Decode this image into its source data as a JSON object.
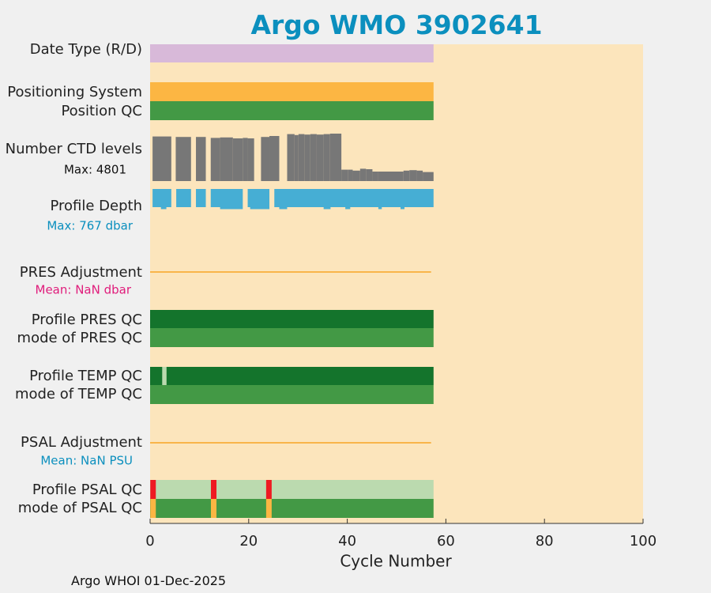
{
  "title": "Argo WMO 3902641",
  "footer": "Argo WHOI 01-Dec-2025",
  "colors": {
    "background": "#fce5bc",
    "date_type": "#d8b9d9",
    "positioning": "#fcb643",
    "qc_good": "#439945",
    "qc_dark": "#14742c",
    "qc_light": "#bbdaaf",
    "qc_bad": "#ee1a22",
    "ctd": "#777777",
    "depth": "#46aed4",
    "adjustment_line": "#f9b54a",
    "pres_mean_text": "#e01c7b",
    "psal_mean_text": "#0b8fbe"
  },
  "chart_data": {
    "type": "bar",
    "title": "Argo WMO 3902641",
    "xlabel": "Cycle Number",
    "xlim": [
      0,
      100
    ],
    "xticks": [
      0,
      20,
      40,
      60,
      80,
      100
    ],
    "max_cycle": 57.5,
    "rows": [
      {
        "label": "Date Type (R/D)",
        "kind": "band"
      },
      {
        "label": "Positioning System",
        "kind": "band"
      },
      {
        "label": "Position QC",
        "kind": "band"
      },
      {
        "label": "Number CTD levels",
        "note": "Max: 4801",
        "kind": "bars"
      },
      {
        "label": "Profile Depth",
        "note": "Max:  767 dbar",
        "kind": "depth"
      },
      {
        "label": "PRES Adjustment",
        "note": "Mean:  NaN dbar",
        "kind": "line"
      },
      {
        "label": "Profile PRES QC",
        "kind": "band"
      },
      {
        "label": "mode of PRES QC",
        "kind": "band"
      },
      {
        "label": "Profile TEMP QC",
        "kind": "band"
      },
      {
        "label": "mode of TEMP QC",
        "kind": "band"
      },
      {
        "label": "PSAL Adjustment",
        "note": "Mean:  NaN PSU",
        "kind": "line"
      },
      {
        "label": "Profile PSAL QC",
        "kind": "band"
      },
      {
        "label": "mode of PSAL QC",
        "kind": "band"
      }
    ],
    "ctd_levels_max": 4801,
    "ctd_levels": [
      [
        0.5,
        4.3,
        4700
      ],
      [
        5.2,
        8.3,
        4650
      ],
      [
        9.3,
        11.3,
        4650
      ],
      [
        12.3,
        14.2,
        4550
      ],
      [
        14.2,
        16.8,
        4600
      ],
      [
        16.8,
        18.8,
        4500
      ],
      [
        18.8,
        19.8,
        4550
      ],
      [
        19.8,
        21.1,
        4500
      ],
      [
        22.5,
        24.2,
        4650
      ],
      [
        24.2,
        26.2,
        4750
      ],
      [
        27.8,
        29.3,
        4950
      ],
      [
        29.3,
        30.1,
        4850
      ],
      [
        30.1,
        31.3,
        4950
      ],
      [
        31.3,
        32.5,
        4900
      ],
      [
        32.5,
        33.8,
        4950
      ],
      [
        33.8,
        35.2,
        4900
      ],
      [
        35.2,
        36.5,
        4950
      ],
      [
        36.5,
        38.8,
        5000
      ],
      [
        38.8,
        40.1,
        1200
      ],
      [
        40.1,
        41.1,
        1200
      ],
      [
        41.1,
        42.6,
        1100
      ],
      [
        42.6,
        43.8,
        1300
      ],
      [
        43.8,
        45.1,
        1250
      ],
      [
        45.1,
        46.3,
        1000
      ],
      [
        46.3,
        51.4,
        1000
      ],
      [
        51.4,
        52.6,
        1100
      ],
      [
        52.6,
        54.1,
        1150
      ],
      [
        54.1,
        55.3,
        1100
      ],
      [
        55.3,
        57.5,
        950
      ]
    ],
    "depth_segments": [
      [
        0.5,
        4.3
      ],
      [
        5.3,
        8.3
      ],
      [
        9.3,
        11.3
      ],
      [
        12.3,
        18.8
      ],
      [
        19.8,
        24.2
      ],
      [
        25.2,
        57.5
      ]
    ],
    "pres_adjustment_mean_dbar": "NaN",
    "psal_adjustment_mean_psu": "NaN",
    "profile_temp_qc_light_cycles": [
      2.5
    ],
    "profile_psal_qc_bad_cycles": [
      0.6,
      12.9,
      24.1
    ],
    "mode_psal_qc_flag_cycles": [
      0.6,
      12.9,
      24.1
    ]
  }
}
